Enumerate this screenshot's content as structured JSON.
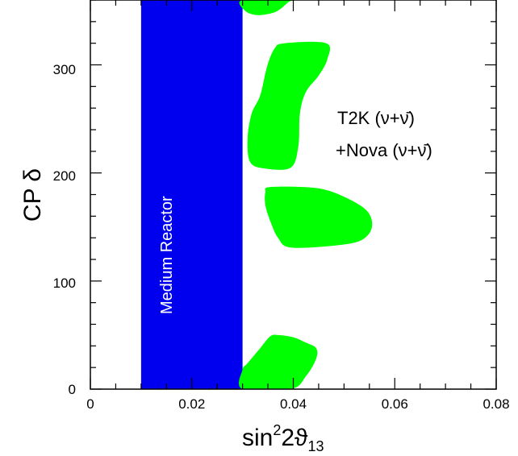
{
  "chart_data": {
    "type": "area",
    "xlabel_base": "sin",
    "xlabel_sup": "2",
    "xlabel_rest": "2ϑ",
    "xlabel_sub": "13",
    "ylabel": "CP δ",
    "xlim": [
      0,
      0.08
    ],
    "ylim": [
      0,
      360
    ],
    "x_ticks": [
      "0",
      "0.02",
      "0.04",
      "0.06",
      "0.08"
    ],
    "y_ticks": [
      "0",
      "100",
      "200",
      "300"
    ],
    "grid": false,
    "colors": {
      "band": "#0000ee",
      "regions": "#00ff00"
    },
    "band": {
      "label": "Medium Reactor",
      "x_range": [
        0.01,
        0.03
      ]
    },
    "annotation": {
      "line1": "T2K (ν+ν̄)",
      "line2": "+Nova (ν+ν̄)"
    },
    "regions": [
      {
        "name": "region-top",
        "points": [
          [
            0.03,
            360
          ],
          [
            0.0305,
            350
          ],
          [
            0.033,
            346
          ],
          [
            0.0365,
            349
          ],
          [
            0.039,
            358
          ],
          [
            0.0395,
            360
          ]
        ]
      },
      {
        "name": "region-upper",
        "points": [
          [
            0.0383,
            320
          ],
          [
            0.0465,
            320
          ],
          [
            0.0467,
            305
          ],
          [
            0.045,
            290
          ],
          [
            0.0425,
            275
          ],
          [
            0.0413,
            255
          ],
          [
            0.041,
            225
          ],
          [
            0.0395,
            205
          ],
          [
            0.0345,
            204
          ],
          [
            0.0315,
            210
          ],
          [
            0.031,
            232
          ],
          [
            0.0318,
            255
          ],
          [
            0.0335,
            272
          ],
          [
            0.0348,
            298
          ],
          [
            0.0363,
            315
          ]
        ]
      },
      {
        "name": "region-middle",
        "points": [
          [
            0.0355,
            187
          ],
          [
            0.0445,
            186
          ],
          [
            0.05,
            178
          ],
          [
            0.0545,
            165
          ],
          [
            0.0555,
            150
          ],
          [
            0.0535,
            138
          ],
          [
            0.0485,
            133
          ],
          [
            0.0395,
            131
          ],
          [
            0.037,
            140
          ],
          [
            0.0355,
            155
          ],
          [
            0.0345,
            170
          ],
          [
            0.0345,
            182
          ]
        ]
      },
      {
        "name": "region-lower",
        "points": [
          [
            0.03,
            0
          ],
          [
            0.0395,
            0
          ],
          [
            0.0425,
            12
          ],
          [
            0.0445,
            28
          ],
          [
            0.0445,
            38
          ],
          [
            0.0425,
            43
          ],
          [
            0.04,
            48
          ],
          [
            0.037,
            50
          ],
          [
            0.0355,
            49
          ],
          [
            0.0335,
            38
          ],
          [
            0.031,
            24
          ],
          [
            0.03,
            18
          ]
        ]
      }
    ]
  }
}
